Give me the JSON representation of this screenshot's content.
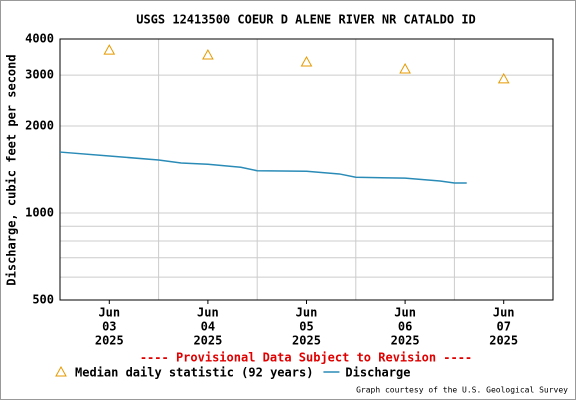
{
  "chart_data": {
    "type": "line",
    "title": "USGS 12413500 COEUR D ALENE RIVER NR CATALDO ID",
    "ylabel": "Discharge, cubic feet per second",
    "annotation": "---- Provisional Data Subject to Revision ----",
    "credit": "Graph courtesy of the U.S. Geological Survey",
    "log_y": true,
    "grid": true,
    "ylim": [
      500,
      4000
    ],
    "yticks": [
      500,
      1000,
      2000,
      3000,
      4000
    ],
    "minor_gridlines": [
      600,
      700,
      800,
      900
    ],
    "xlim": [
      "2025-06-03T00:00",
      "2025-06-08T00:00"
    ],
    "xgrid": [
      "2025-06-04T00:00",
      "2025-06-05T00:00",
      "2025-06-06T00:00",
      "2025-06-07T00:00"
    ],
    "xticks": [
      {
        "value": "2025-06-03T12:00",
        "label": [
          "Jun",
          "03",
          "2025"
        ]
      },
      {
        "value": "2025-06-04T12:00",
        "label": [
          "Jun",
          "04",
          "2025"
        ]
      },
      {
        "value": "2025-06-05T12:00",
        "label": [
          "Jun",
          "05",
          "2025"
        ]
      },
      {
        "value": "2025-06-06T12:00",
        "label": [
          "Jun",
          "06",
          "2025"
        ]
      },
      {
        "value": "2025-06-07T12:00",
        "label": [
          "Jun",
          "07",
          "2025"
        ]
      }
    ],
    "series": [
      {
        "name": "Median daily statistic (92 years)",
        "type": "scatter",
        "marker": "triangle",
        "color": "#e69a00",
        "x": [
          "2025-06-03T12:00",
          "2025-06-04T12:00",
          "2025-06-05T12:00",
          "2025-06-06T12:00",
          "2025-06-07T12:00"
        ],
        "values": [
          3660,
          3520,
          3330,
          3150,
          2910
        ]
      },
      {
        "name": "Discharge",
        "type": "line",
        "color": "#2a8bb7",
        "x": [
          "2025-06-03T00:00",
          "2025-06-03T12:00",
          "2025-06-04T00:00",
          "2025-06-04T05:30",
          "2025-06-04T12:00",
          "2025-06-04T20:00",
          "2025-06-05T00:00",
          "2025-06-05T12:00",
          "2025-06-05T20:00",
          "2025-06-06T00:00",
          "2025-06-06T12:00",
          "2025-06-06T20:30",
          "2025-06-07T00:00",
          "2025-06-07T03:00"
        ],
        "values": [
          1625,
          1575,
          1525,
          1490,
          1475,
          1440,
          1400,
          1395,
          1365,
          1330,
          1320,
          1290,
          1270,
          1270
        ]
      }
    ]
  }
}
